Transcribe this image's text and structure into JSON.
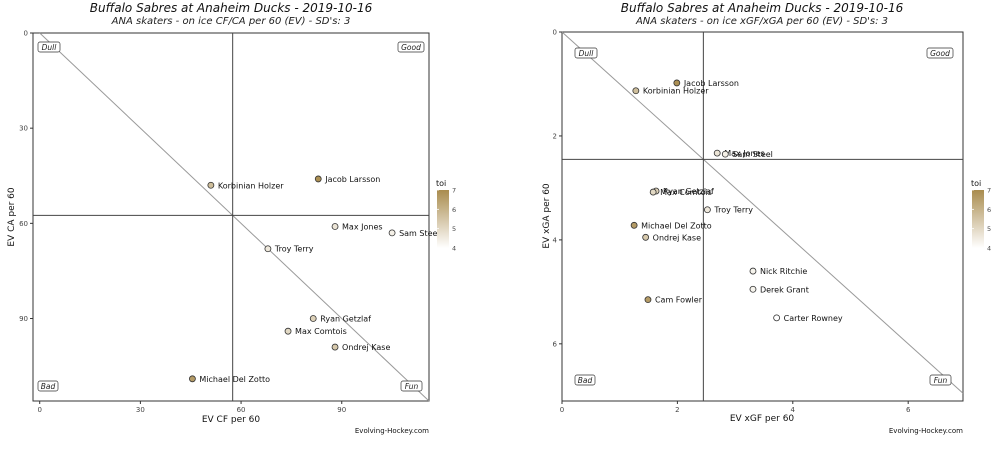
{
  "page": {
    "source": "Evolving-Hockey.com"
  },
  "chart_data": [
    {
      "type": "scatter",
      "title": "Buffalo Sabres at Anaheim Ducks - 2019-10-16",
      "subtitle": "ANA skaters - on ice CF/CA per 60 (EV) - SD's: 3",
      "xlabel": "EV CF per 60",
      "ylabel": "EV CA per 60",
      "xlim": [
        -2,
        116
      ],
      "ylim": [
        0,
        116
      ],
      "y_inverted": true,
      "xticks": [
        0,
        30,
        60,
        90
      ],
      "yticks": [
        0,
        30,
        60,
        90
      ],
      "vline": 57.5,
      "hline": 57.5,
      "diagonal": true,
      "grid": false,
      "quadrant_labels": {
        "top_left": "Dull",
        "top_right": "Good",
        "bottom_left": "Bad",
        "bottom_right": "Fun"
      },
      "legend": {
        "title": "toi",
        "min": 4,
        "max": 7,
        "ticks": [
          4,
          5,
          6,
          7
        ],
        "position": "right"
      },
      "points": [
        {
          "name": "Jacob Larsson",
          "x": 83,
          "y": 46,
          "toi": 6.9
        },
        {
          "name": "Korbinian Holzer",
          "x": 51,
          "y": 48,
          "toi": 5.7
        },
        {
          "name": "Max Jones",
          "x": 88,
          "y": 61,
          "toi": 4.7
        },
        {
          "name": "Sam Steel",
          "x": 105,
          "y": 63,
          "toi": 4.4
        },
        {
          "name": "Troy Terry",
          "x": 68,
          "y": 68,
          "toi": 4.6
        },
        {
          "name": "Ryan Getzlaf",
          "x": 81.5,
          "y": 90,
          "toi": 5.2
        },
        {
          "name": "Max Comtois",
          "x": 74,
          "y": 94,
          "toi": 5.0
        },
        {
          "name": "Ondrej Kase",
          "x": 88,
          "y": 99,
          "toi": 5.4
        },
        {
          "name": "Michael Del Zotto",
          "x": 45.5,
          "y": 109,
          "toi": 6.6
        }
      ]
    },
    {
      "type": "scatter",
      "title": "Buffalo Sabres at Anaheim Ducks - 2019-10-16",
      "subtitle": "ANA skaters - on ice xGF/xGA per 60 (EV) - SD's: 3",
      "xlabel": "EV xGF per 60",
      "ylabel": "EV xGA per 60",
      "xlim": [
        0,
        6.95
      ],
      "ylim": [
        0,
        7.1
      ],
      "y_inverted": true,
      "xticks": [
        0,
        2,
        4,
        6
      ],
      "yticks": [
        0,
        2,
        4,
        6
      ],
      "vline": 2.45,
      "hline": 2.45,
      "diagonal": true,
      "grid": false,
      "quadrant_labels": {
        "top_left": "Dull",
        "top_right": "Good",
        "bottom_left": "Bad",
        "bottom_right": "Fun"
      },
      "legend": {
        "title": "toi",
        "min": 4,
        "max": 7,
        "ticks": [
          4,
          5,
          6,
          7
        ],
        "position": "right"
      },
      "points": [
        {
          "name": "Jacob Larsson",
          "x": 1.99,
          "y": 0.98,
          "toi": 6.9
        },
        {
          "name": "Korbinian Holzer",
          "x": 1.28,
          "y": 1.13,
          "toi": 5.7
        },
        {
          "name": "Max Jones",
          "x": 2.69,
          "y": 2.33,
          "toi": 4.7
        },
        {
          "name": "Sam Steel",
          "x": 2.83,
          "y": 2.35,
          "toi": 4.4
        },
        {
          "name": "Ryan Getzlaf",
          "x": 1.63,
          "y": 3.06,
          "toi": 5.2
        },
        {
          "name": "Max Comtois",
          "x": 1.58,
          "y": 3.08,
          "toi": 5.0
        },
        {
          "name": "Troy Terry",
          "x": 2.52,
          "y": 3.42,
          "toi": 4.6
        },
        {
          "name": "Michael Del Zotto",
          "x": 1.25,
          "y": 3.72,
          "toi": 6.6
        },
        {
          "name": "Ondrej Kase",
          "x": 1.45,
          "y": 3.95,
          "toi": 5.4
        },
        {
          "name": "Nick Ritchie",
          "x": 3.31,
          "y": 4.6,
          "toi": 4.3
        },
        {
          "name": "Derek Grant",
          "x": 3.31,
          "y": 4.95,
          "toi": 4.3
        },
        {
          "name": "Cam Fowler",
          "x": 1.49,
          "y": 5.15,
          "toi": 6.6
        },
        {
          "name": "Carter Rowney",
          "x": 3.72,
          "y": 5.5,
          "toi": 4.0
        }
      ]
    }
  ]
}
